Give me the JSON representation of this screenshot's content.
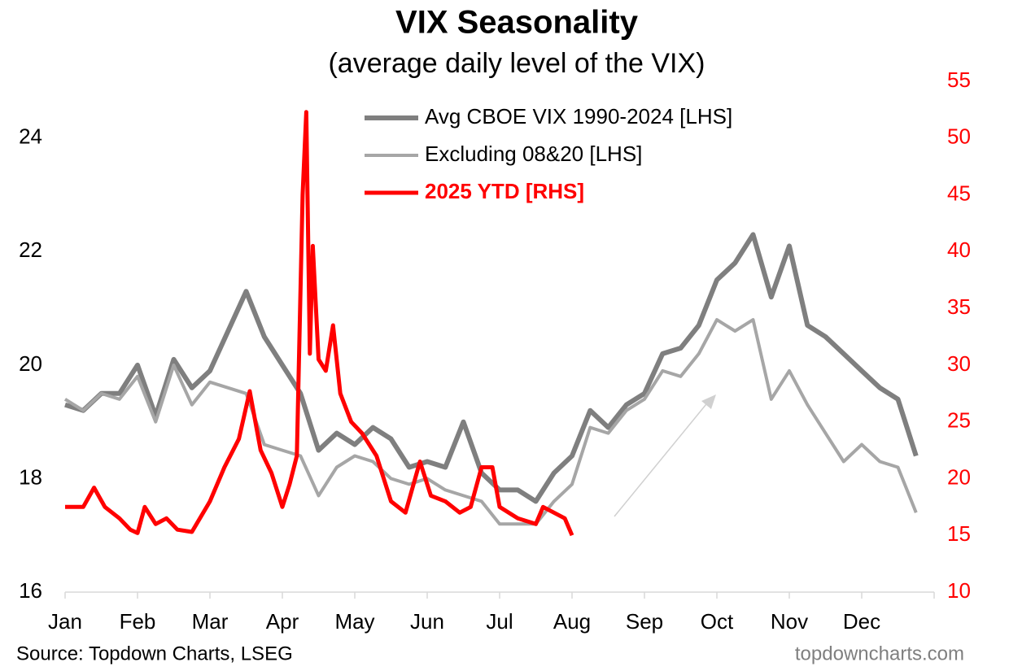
{
  "chart_data": {
    "type": "line",
    "title": "VIX Seasonality",
    "subtitle": "(average daily level of the VIX)",
    "source": "Source: Topdown Charts, LSEG",
    "watermark": "topdowncharts.com",
    "xlim": [
      0,
      12
    ],
    "xticks": [
      {
        "value": 0,
        "label": "Jan"
      },
      {
        "value": 1,
        "label": "Feb"
      },
      {
        "value": 2,
        "label": "Mar"
      },
      {
        "value": 3,
        "label": "Apr"
      },
      {
        "value": 4,
        "label": "May"
      },
      {
        "value": 5,
        "label": "Jun"
      },
      {
        "value": 6,
        "label": "Jul"
      },
      {
        "value": 7,
        "label": "Aug"
      },
      {
        "value": 8,
        "label": "Sep"
      },
      {
        "value": 9,
        "label": "Oct"
      },
      {
        "value": 10,
        "label": "Nov"
      },
      {
        "value": 11,
        "label": "Dec"
      }
    ],
    "ylim": [
      16,
      25
    ],
    "yticks": [
      16,
      18,
      20,
      22,
      24
    ],
    "y2lim": [
      10,
      55
    ],
    "y2ticks": [
      10,
      15,
      20,
      25,
      30,
      35,
      40,
      45,
      50,
      55
    ],
    "y2color": "#ff0000",
    "series": [
      {
        "name": "Avg CBOE VIX 1990-2024 [LHS]",
        "color": "#7f7f7f",
        "width": 6,
        "x": [
          0,
          0.25,
          0.5,
          0.75,
          1,
          1.25,
          1.5,
          1.75,
          2,
          2.25,
          2.5,
          2.75,
          3,
          3.25,
          3.5,
          3.75,
          4,
          4.25,
          4.5,
          4.75,
          5,
          5.25,
          5.5,
          5.75,
          6,
          6.25,
          6.5,
          6.75,
          7,
          7.25,
          7.5,
          7.75,
          8,
          8.25,
          8.5,
          8.75,
          9,
          9.25,
          9.5,
          9.75,
          10,
          10.25,
          10.5,
          10.75,
          11,
          11.25,
          11.5,
          11.75
        ],
        "values": [
          19.3,
          19.2,
          19.5,
          19.5,
          20.0,
          19.1,
          20.1,
          19.6,
          19.9,
          20.6,
          21.3,
          20.5,
          20.0,
          19.5,
          18.5,
          18.8,
          18.6,
          18.9,
          18.7,
          18.2,
          18.3,
          18.2,
          19.0,
          18.1,
          17.8,
          17.8,
          17.6,
          18.1,
          18.4,
          19.2,
          18.9,
          19.3,
          19.5,
          20.2,
          20.3,
          20.7,
          21.5,
          21.8,
          22.3,
          21.2,
          22.1,
          20.7,
          20.5,
          20.2,
          19.9,
          19.6,
          19.4,
          18.4
        ]
      },
      {
        "name": "Excluding 08&20 [LHS]",
        "color": "#a6a6a6",
        "width": 4,
        "x": [
          0,
          0.25,
          0.5,
          0.75,
          1,
          1.25,
          1.5,
          1.75,
          2,
          2.25,
          2.5,
          2.75,
          3,
          3.25,
          3.5,
          3.75,
          4,
          4.25,
          4.5,
          4.75,
          5,
          5.25,
          5.5,
          5.75,
          6,
          6.25,
          6.5,
          6.75,
          7,
          7.25,
          7.5,
          7.75,
          8,
          8.25,
          8.5,
          8.75,
          9,
          9.25,
          9.5,
          9.75,
          10,
          10.25,
          10.5,
          10.75,
          11,
          11.25,
          11.5,
          11.75
        ],
        "values": [
          19.4,
          19.2,
          19.5,
          19.4,
          19.8,
          19.0,
          20.0,
          19.3,
          19.7,
          19.6,
          19.5,
          18.6,
          18.5,
          18.4,
          17.7,
          18.2,
          18.4,
          18.3,
          18.0,
          17.9,
          18.0,
          17.8,
          17.7,
          17.6,
          17.2,
          17.2,
          17.2,
          17.6,
          17.9,
          18.9,
          18.8,
          19.2,
          19.4,
          19.9,
          19.8,
          20.2,
          20.8,
          20.6,
          20.8,
          19.4,
          19.9,
          19.3,
          18.8,
          18.3,
          18.6,
          18.3,
          18.2,
          17.4
        ]
      },
      {
        "name": "2025 YTD [RHS]",
        "color": "#ff0000",
        "width": 5,
        "axis": "y2",
        "bold": true,
        "x": [
          0,
          0.25,
          0.4,
          0.55,
          0.75,
          0.9,
          1,
          1.1,
          1.25,
          1.4,
          1.55,
          1.75,
          2,
          2.2,
          2.4,
          2.55,
          2.7,
          2.85,
          3,
          3.1,
          3.2,
          3.28,
          3.33,
          3.38,
          3.42,
          3.5,
          3.6,
          3.7,
          3.8,
          3.95,
          4.1,
          4.3,
          4.5,
          4.7,
          4.9,
          5.05,
          5.25,
          5.45,
          5.6,
          5.75,
          5.9,
          6,
          6.25,
          6.5,
          6.6,
          6.75,
          6.9,
          7
        ],
        "values": [
          17.5,
          17.5,
          19.2,
          17.5,
          16.5,
          15.5,
          15.2,
          17.5,
          16.0,
          16.5,
          15.5,
          15.3,
          18.0,
          21.0,
          23.5,
          27.7,
          22.5,
          20.5,
          17.5,
          19.5,
          22.0,
          45.0,
          52.3,
          31.0,
          40.5,
          30.5,
          29.5,
          33.5,
          27.5,
          25.0,
          24.0,
          22.0,
          18.0,
          17.0,
          21.5,
          18.5,
          18.0,
          17.0,
          17.5,
          21.0,
          21.0,
          17.5,
          16.5,
          16.0,
          17.5,
          17.0,
          16.5,
          15.0
        ]
      }
    ]
  }
}
